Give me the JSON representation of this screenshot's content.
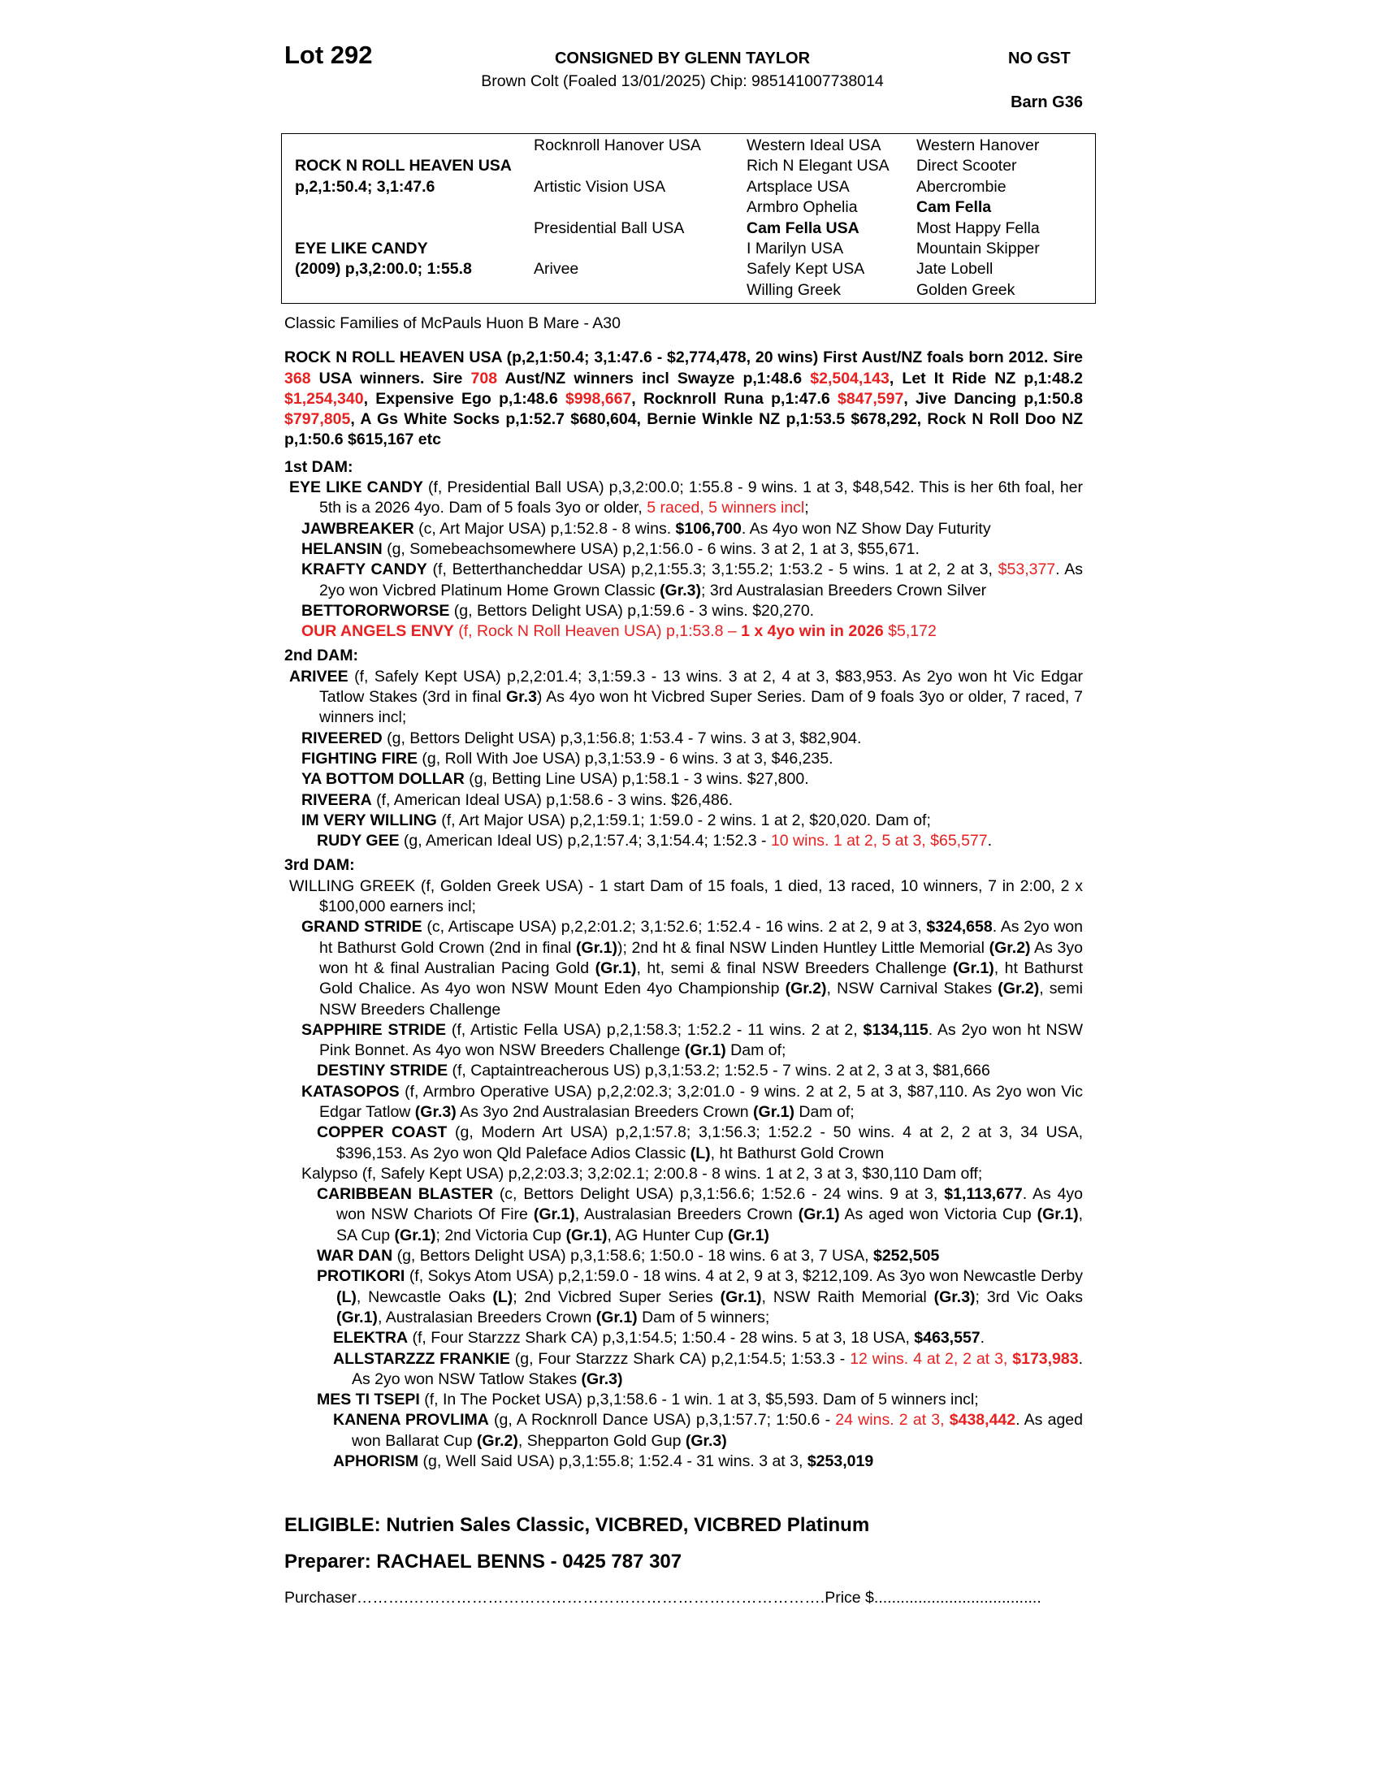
{
  "header": {
    "lot": "Lot 292",
    "consignor": "CONSIGNED BY GLENN TAYLOR",
    "gst": "NO GST",
    "description": "Brown Colt (Foaled 13/01/2025) Chip: 985141007738014",
    "barn": "Barn G36"
  },
  "pedigree": {
    "sire": {
      "name": "ROCK N ROLL HEAVEN USA",
      "record": "p,2,1:50.4; 3,1:47.6"
    },
    "dam": {
      "name": "EYE LIKE CANDY",
      "record": "(2009) p,3,2:00.0; 1:55.8"
    },
    "grandparents": [
      "Rocknroll Hanover USA",
      "Artistic Vision USA",
      "Presidential Ball USA",
      "Arivee"
    ],
    "col3": [
      {
        "t": "Western Ideal USA"
      },
      {
        "t": "Rich N Elegant USA"
      },
      {
        "t": "Artsplace USA"
      },
      {
        "t": "Armbro Ophelia"
      },
      {
        "t": "Cam Fella USA",
        "b": true
      },
      {
        "t": "I Marilyn USA"
      },
      {
        "t": "Safely Kept USA"
      },
      {
        "t": "Willing Greek"
      }
    ],
    "col4": [
      {
        "t": "Western Hanover"
      },
      {
        "t": "Direct Scooter"
      },
      {
        "t": "Abercrombie"
      },
      {
        "t": "Cam Fella",
        "b": true
      },
      {
        "t": "Most Happy Fella"
      },
      {
        "t": "Mountain Skipper"
      },
      {
        "t": "Jate Lobell"
      },
      {
        "t": "Golden Greek"
      }
    ]
  },
  "family": "Classic Families of McPauls Huon B Mare - A30",
  "sire_paragraph": [
    {
      "t": "ROCK N ROLL HEAVEN USA (p,2,1:50.4; 3,1:47.6 - $2,774,478, 20 wins) First Aust/NZ foals born 2012. Sire ",
      "b": true
    },
    {
      "t": "368",
      "b": true,
      "red": true
    },
    {
      "t": " USA winners. Sire ",
      "b": true
    },
    {
      "t": "708",
      "b": true,
      "red": true
    },
    {
      "t": " Aust/NZ winners incl Swayze p,1:48.6 ",
      "b": true
    },
    {
      "t": "$2,504,143",
      "b": true,
      "red": true
    },
    {
      "t": ", Let It Ride NZ p,1:48.2 ",
      "b": true
    },
    {
      "t": "$1,254,340",
      "b": true,
      "red": true
    },
    {
      "t": ", Expensive Ego p,1:48.6 ",
      "b": true
    },
    {
      "t": "$998,667",
      "b": true,
      "red": true
    },
    {
      "t": ", Rocknroll Runa p,1:47.6 ",
      "b": true
    },
    {
      "t": "$847,597",
      "b": true,
      "red": true
    },
    {
      "t": ", Jive Dancing p,1:50.8 ",
      "b": true
    },
    {
      "t": "$797,805",
      "b": true,
      "red": true
    },
    {
      "t": ", A Gs White Socks p,1:52.7 $680,604, Bernie Winkle NZ p,1:53.5 $678,292, Rock N Roll Doo NZ p,1:50.6 $615,167 etc",
      "b": true
    }
  ],
  "sections": [
    {
      "heading": "1st DAM:",
      "entries": [
        {
          "gen": 0,
          "runs": [
            {
              "t": "EYE LIKE CANDY",
              "b": true
            },
            {
              "t": " (f, Presidential Ball USA) p,3,2:00.0; 1:55.8 - 9 wins. 1 at 3, $48,542. This is her 6th foal, her 5th is a 2026 4yo. Dam of 5 foals 3yo or older, "
            },
            {
              "t": "5 raced, 5 winners incl",
              "red": true
            },
            {
              "t": ";"
            }
          ]
        },
        {
          "gen": 1,
          "runs": [
            {
              "t": "JAWBREAKER",
              "b": true
            },
            {
              "t": " (c, Art Major USA) p,1:52.8 - 8 wins. "
            },
            {
              "t": "$106,700",
              "b": true
            },
            {
              "t": ". As 4yo won NZ Show Day Futurity"
            }
          ]
        },
        {
          "gen": 1,
          "runs": [
            {
              "t": "HELANSIN",
              "b": true
            },
            {
              "t": " (g, Somebeachsomewhere USA) p,2,1:56.0 - 6 wins. 3 at 2, 1 at 3, $55,671."
            }
          ]
        },
        {
          "gen": 1,
          "runs": [
            {
              "t": "KRAFTY CANDY",
              "b": true
            },
            {
              "t": " (f, Betterthancheddar USA) p,2,1:55.3; 3,1:55.2; 1:53.2 - 5 wins. 1 at 2, 2 at 3, "
            },
            {
              "t": "$53,377",
              "red": true
            },
            {
              "t": ". As 2yo won Vicbred Platinum Home Grown Classic "
            },
            {
              "t": "(Gr.3)",
              "b": true
            },
            {
              "t": "; 3rd Australasian Breeders Crown Silver"
            }
          ]
        },
        {
          "gen": 1,
          "runs": [
            {
              "t": "BETTORORWORSE",
              "b": true
            },
            {
              "t": " (g, Bettors Delight USA) p,1:59.6 - 3 wins. $20,270."
            }
          ]
        },
        {
          "gen": 1,
          "runs": [
            {
              "t": "OUR ANGELS ENVY",
              "b": true,
              "red": true
            },
            {
              "t": " (f, Rock N Roll Heaven USA) p,1:53.8 – ",
              "red": true
            },
            {
              "t": "1 x 4yo win in 2026",
              "b": true,
              "red": true
            },
            {
              "t": " $5,172",
              "red": true
            }
          ]
        }
      ]
    },
    {
      "heading": "2nd DAM:",
      "entries": [
        {
          "gen": 0,
          "runs": [
            {
              "t": "ARIVEE",
              "b": true
            },
            {
              "t": " (f, Safely Kept USA) p,2,2:01.4; 3,1:59.3 - 13 wins. 3 at 2, 4 at 3, $83,953. As 2yo won ht Vic Edgar Tatlow Stakes (3rd in final "
            },
            {
              "t": "Gr.3",
              "b": true
            },
            {
              "t": ") As 4yo won ht Vicbred Super Series. Dam of 9 foals 3yo or older, 7 raced, 7 winners incl;"
            }
          ]
        },
        {
          "gen": 1,
          "runs": [
            {
              "t": "RIVEERED",
              "b": true
            },
            {
              "t": " (g, Bettors Delight USA) p,3,1:56.8; 1:53.4 - 7 wins. 3 at 3, $82,904."
            }
          ]
        },
        {
          "gen": 1,
          "runs": [
            {
              "t": "FIGHTING FIRE",
              "b": true
            },
            {
              "t": " (g, Roll With Joe USA) p,3,1:53.9 - 6 wins. 3 at 3, $46,235."
            }
          ]
        },
        {
          "gen": 1,
          "runs": [
            {
              "t": "YA BOTTOM DOLLAR",
              "b": true
            },
            {
              "t": " (g, Betting Line USA) p,1:58.1 - 3 wins. $27,800."
            }
          ]
        },
        {
          "gen": 1,
          "runs": [
            {
              "t": "RIVEERA",
              "b": true
            },
            {
              "t": " (f, American Ideal USA) p,1:58.6 - 3 wins. $26,486."
            }
          ]
        },
        {
          "gen": 1,
          "runs": [
            {
              "t": "IM VERY WILLING",
              "b": true
            },
            {
              "t": " (f, Art Major USA) p,2,1:59.1; 1:59.0 - 2 wins. 1 at 2, $20,020. Dam of;"
            }
          ]
        },
        {
          "gen": 2,
          "runs": [
            {
              "t": "RUDY GEE",
              "b": true
            },
            {
              "t": " (g, American Ideal US) p,2,1:57.4; 3,1:54.4; 1:52.3 - "
            },
            {
              "t": "10 wins. 1 at 2, 5 at 3, $65,577",
              "red": true
            },
            {
              "t": "."
            }
          ]
        }
      ]
    },
    {
      "heading": "3rd DAM:",
      "entries": [
        {
          "gen": 0,
          "runs": [
            {
              "t": "WILLING GREEK (f, Golden Greek USA) - 1 start Dam of 15 foals, 1 died, 13 raced, 10 winners, 7 in 2:00, 2 x $100,000 earners incl;"
            }
          ]
        },
        {
          "gen": 1,
          "runs": [
            {
              "t": "GRAND STRIDE",
              "b": true
            },
            {
              "t": " (c, Artiscape USA) p,2,2:01.2; 3,1:52.6; 1:52.4 - 16 wins. 2 at 2, 9 at 3, "
            },
            {
              "t": "$324,658",
              "b": true
            },
            {
              "t": ". As 2yo won ht Bathurst Gold Crown (2nd in final "
            },
            {
              "t": "(Gr.1)",
              "b": true
            },
            {
              "t": "); 2nd ht & final NSW Linden Huntley Little Memorial "
            },
            {
              "t": "(Gr.2)",
              "b": true
            },
            {
              "t": " As 3yo won ht & final Australian Pacing Gold "
            },
            {
              "t": "(Gr.1)",
              "b": true
            },
            {
              "t": ", ht, semi & final NSW Breeders Challenge "
            },
            {
              "t": "(Gr.1)",
              "b": true
            },
            {
              "t": ", ht Bathurst Gold Chalice. As 4yo won NSW Mount Eden 4yo Championship "
            },
            {
              "t": "(Gr.2)",
              "b": true
            },
            {
              "t": ", NSW Carnival Stakes "
            },
            {
              "t": "(Gr.2)",
              "b": true
            },
            {
              "t": ", semi NSW Breeders Challenge"
            }
          ]
        },
        {
          "gen": 1,
          "runs": [
            {
              "t": "SAPPHIRE STRIDE",
              "b": true
            },
            {
              "t": " (f, Artistic Fella USA) p,2,1:58.3; 1:52.2 - 11 wins. 2 at 2, "
            },
            {
              "t": "$134,115",
              "b": true
            },
            {
              "t": ". As 2yo won ht NSW Pink Bonnet. As 4yo won NSW Breeders Challenge "
            },
            {
              "t": "(Gr.1)",
              "b": true
            },
            {
              "t": " Dam of;"
            }
          ]
        },
        {
          "gen": 2,
          "runs": [
            {
              "t": "DESTINY STRIDE",
              "b": true
            },
            {
              "t": " (f, Captaintreacherous US) p,3,1:53.2; 1:52.5 - 7 wins. 2 at 2, 3 at 3, $81,666"
            }
          ]
        },
        {
          "gen": 1,
          "runs": [
            {
              "t": "KATASOPOS",
              "b": true
            },
            {
              "t": " (f, Armbro Operative USA) p,2,2:02.3; 3,2:01.0 - 9 wins. 2 at 2, 5 at 3, $87,110. As 2yo won Vic Edgar Tatlow "
            },
            {
              "t": "(Gr.3)",
              "b": true
            },
            {
              "t": " As 3yo 2nd Australasian Breeders Crown "
            },
            {
              "t": "(Gr.1)",
              "b": true
            },
            {
              "t": " Dam of;"
            }
          ]
        },
        {
          "gen": 2,
          "runs": [
            {
              "t": "COPPER COAST",
              "b": true
            },
            {
              "t": " (g, Modern Art USA) p,2,1:57.8; 3,1:56.3; 1:52.2 - 50 wins. 4 at 2, 2 at 3, 34 USA, $396,153. As 2yo won Qld Paleface Adios Classic "
            },
            {
              "t": "(L)",
              "b": true
            },
            {
              "t": ", ht Bathurst Gold Crown"
            }
          ]
        },
        {
          "gen": 1,
          "runs": [
            {
              "t": "Kalypso (f, Safely Kept USA) p,2,2:03.3; 3,2:02.1; 2:00.8 - 8 wins. 1 at 2, 3 at 3, $30,110 Dam off;"
            }
          ]
        },
        {
          "gen": 2,
          "runs": [
            {
              "t": "CARIBBEAN BLASTER",
              "b": true
            },
            {
              "t": " (c, Bettors Delight USA) p,3,1:56.6; 1:52.6 - 24 wins. 9 at 3, "
            },
            {
              "t": "$1,113,677",
              "b": true
            },
            {
              "t": ". As 4yo won NSW Chariots Of Fire "
            },
            {
              "t": "(Gr.1)",
              "b": true
            },
            {
              "t": ", Australasian Breeders Crown "
            },
            {
              "t": "(Gr.1)",
              "b": true
            },
            {
              "t": " As aged won Victoria Cup "
            },
            {
              "t": "(Gr.1)",
              "b": true
            },
            {
              "t": ", SA Cup "
            },
            {
              "t": "(Gr.1)",
              "b": true
            },
            {
              "t": "; 2nd Victoria Cup "
            },
            {
              "t": "(Gr.1)",
              "b": true
            },
            {
              "t": ", AG Hunter Cup "
            },
            {
              "t": "(Gr.1)",
              "b": true
            }
          ]
        },
        {
          "gen": 2,
          "runs": [
            {
              "t": "WAR DAN",
              "b": true
            },
            {
              "t": " (g, Bettors Delight USA) p,3,1:58.6; 1:50.0 - 18 wins. 6 at 3, 7 USA, "
            },
            {
              "t": "$252,505",
              "b": true
            }
          ]
        },
        {
          "gen": 2,
          "runs": [
            {
              "t": "PROTIKORI",
              "b": true
            },
            {
              "t": " (f, Sokys Atom USA) p,2,1:59.0 - 18 wins. 4 at 2, 9 at 3, $212,109. As 3yo won Newcastle Derby "
            },
            {
              "t": "(L)",
              "b": true
            },
            {
              "t": ", Newcastle Oaks "
            },
            {
              "t": "(L)",
              "b": true
            },
            {
              "t": "; 2nd Vicbred Super Series "
            },
            {
              "t": "(Gr.1)",
              "b": true
            },
            {
              "t": ", NSW Raith Memorial "
            },
            {
              "t": "(Gr.3)",
              "b": true
            },
            {
              "t": "; 3rd Vic Oaks "
            },
            {
              "t": "(Gr.1)",
              "b": true
            },
            {
              "t": ", Australasian Breeders Crown "
            },
            {
              "t": "(Gr.1)",
              "b": true
            },
            {
              "t": " Dam of 5 winners;"
            }
          ]
        },
        {
          "gen": 3,
          "runs": [
            {
              "t": "ELEKTRA",
              "b": true
            },
            {
              "t": " (f, Four Starzzz Shark CA) p,3,1:54.5; 1:50.4 - 28 wins. 5 at 3, 18 USA, "
            },
            {
              "t": "$463,557",
              "b": true
            },
            {
              "t": "."
            }
          ]
        },
        {
          "gen": 3,
          "runs": [
            {
              "t": "ALLSTARZZZ FRANKIE",
              "b": true
            },
            {
              "t": " (g, Four Starzzz Shark CA) p,2,1:54.5; 1:53.3 - "
            },
            {
              "t": "12 wins. 4 at 2, 2 at 3, ",
              "red": true
            },
            {
              "t": "$173,983",
              "b": true,
              "red": true
            },
            {
              "t": ". As 2yo won NSW Tatlow Stakes "
            },
            {
              "t": "(Gr.3)",
              "b": true
            }
          ]
        },
        {
          "gen": 2,
          "runs": [
            {
              "t": "MES TI TSEPI",
              "b": true
            },
            {
              "t": " (f, In The Pocket USA) p,3,1:58.6 - 1 win. 1 at 3, $5,593. Dam of 5 winners incl;"
            }
          ]
        },
        {
          "gen": 3,
          "runs": [
            {
              "t": "KANENA PROVLIMA",
              "b": true
            },
            {
              "t": " (g, A Rocknroll Dance USA) p,3,1:57.7; 1:50.6 - "
            },
            {
              "t": "24 wins. 2 at 3, ",
              "red": true
            },
            {
              "t": "$438,442",
              "b": true,
              "red": true
            },
            {
              "t": ". As aged won Ballarat Cup "
            },
            {
              "t": "(Gr.2)",
              "b": true
            },
            {
              "t": ", Shepparton Gold Gup "
            },
            {
              "t": "(Gr.3)",
              "b": true
            }
          ]
        },
        {
          "gen": 3,
          "runs": [
            {
              "t": "APHORISM",
              "b": true
            },
            {
              "t": " (g, Well Said USA) p,3,1:55.8; 1:52.4 - 31 wins. 3 at 3, "
            },
            {
              "t": "$253,019",
              "b": true
            }
          ]
        }
      ]
    }
  ],
  "footer": {
    "eligible": "ELIGIBLE: Nutrien Sales Classic, VICBRED, VICBRED Platinum",
    "preparer": "Preparer: RACHAEL BENNS - 0425 787 307",
    "purchaser": "Purchaser……….…………………………………………………………………….Price $......................................"
  }
}
